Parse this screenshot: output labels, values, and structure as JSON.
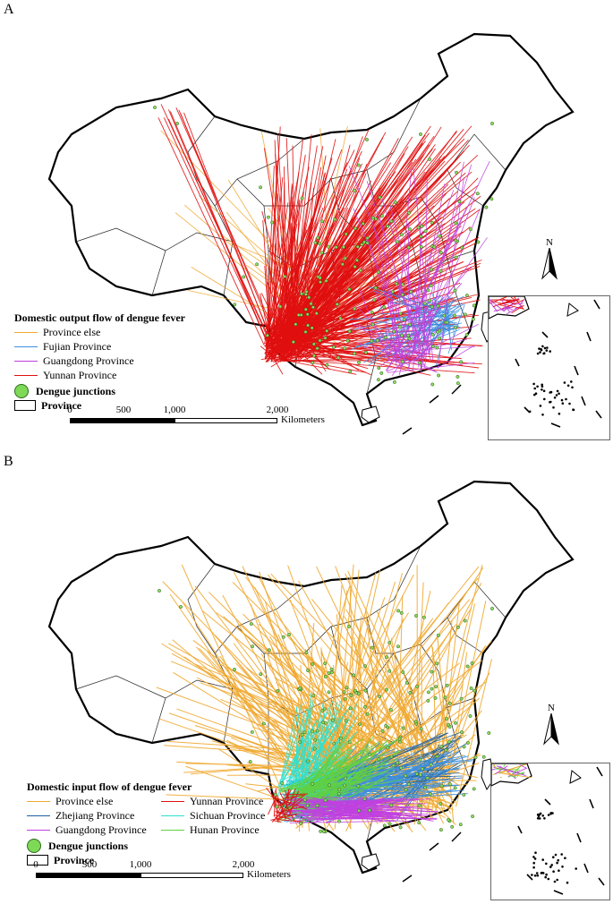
{
  "panels": [
    {
      "letter": "A",
      "legend_title": "Domestic output flow of dengue fever",
      "flows": [
        {
          "label": "Province else",
          "color": "#f0a830"
        },
        {
          "label": "Fujian Province",
          "color": "#3b8fe0"
        },
        {
          "label": "Guangdong Province",
          "color": "#c040e0"
        },
        {
          "label": "Yunnan Province",
          "color": "#e01010"
        }
      ],
      "junctions_label": "Dengue junctions",
      "province_label": "Province",
      "scale": {
        "ticks": [
          "0",
          "500",
          "1,000",
          "2,000"
        ],
        "unit": "Kilometers"
      },
      "north": "N"
    },
    {
      "letter": "B",
      "legend_title": "Domestic input flow of dengue fever",
      "flows": [
        {
          "label": "Province else",
          "color": "#f0a830"
        },
        {
          "label": "Yunnan Province",
          "color": "#e01010"
        },
        {
          "label": "Zhejiang Province",
          "color": "#1d5fa0"
        },
        {
          "label": "Sichuan Province",
          "color": "#30e0d0"
        },
        {
          "label": "Guangdong Province",
          "color": "#c040e0"
        },
        {
          "label": "Hunan Province",
          "color": "#60d040"
        }
      ],
      "junctions_label": "Dengue junctions",
      "province_label": "Province",
      "scale": {
        "ticks": [
          "0",
          "500",
          "1,000",
          "2,000"
        ],
        "unit": "Kilometers"
      },
      "north": "N"
    }
  ]
}
